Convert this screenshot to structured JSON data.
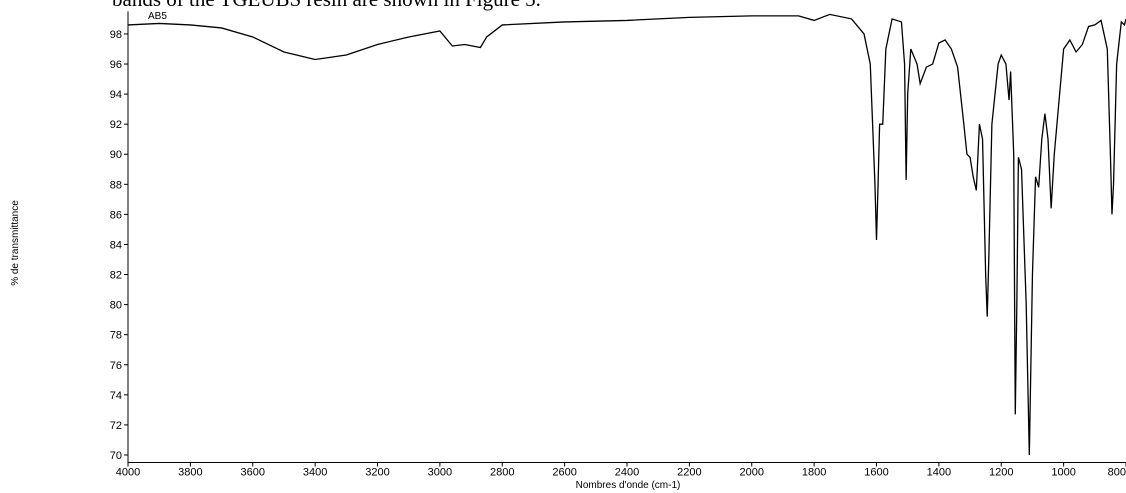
{
  "caption_fragment": "bands of the TGEUBS resin are shown in Figure 5.",
  "chart_data": {
    "type": "line",
    "annotation": "AB5",
    "x_label": "Nombres d'onde (cm-1)",
    "y_label": "% de transmittance",
    "x_reversed": true,
    "xlim": [
      4000,
      800
    ],
    "ylim": [
      69.5,
      99.5
    ],
    "xticks": [
      4000,
      3800,
      3600,
      3400,
      3200,
      3000,
      2800,
      2600,
      2400,
      2200,
      2000,
      1800,
      1600,
      1400,
      1200,
      1000,
      800
    ],
    "yticks": [
      70,
      72,
      74,
      76,
      78,
      80,
      82,
      84,
      86,
      88,
      90,
      92,
      94,
      96,
      98
    ],
    "grid": false,
    "x": [
      4000,
      3900,
      3800,
      3700,
      3600,
      3500,
      3400,
      3300,
      3200,
      3100,
      3000,
      2960,
      2920,
      2870,
      2850,
      2800,
      2600,
      2400,
      2200,
      2000,
      1850,
      1800,
      1750,
      1680,
      1640,
      1620,
      1605,
      1600,
      1595,
      1590,
      1580,
      1570,
      1550,
      1520,
      1510,
      1505,
      1500,
      1490,
      1470,
      1460,
      1440,
      1420,
      1400,
      1380,
      1360,
      1340,
      1320,
      1310,
      1300,
      1290,
      1280,
      1270,
      1260,
      1250,
      1245,
      1240,
      1230,
      1210,
      1200,
      1185,
      1175,
      1170,
      1160,
      1155,
      1150,
      1145,
      1135,
      1120,
      1110,
      1100,
      1090,
      1080,
      1070,
      1060,
      1050,
      1040,
      1030,
      1000,
      980,
      960,
      940,
      920,
      900,
      880,
      860,
      850,
      845,
      840,
      830,
      815,
      805,
      800
    ],
    "series": [
      {
        "color": "#000000",
        "values": [
          98.6,
          98.7,
          98.6,
          98.4,
          97.8,
          96.8,
          96.3,
          96.6,
          97.3,
          97.8,
          98.2,
          97.2,
          97.3,
          97.1,
          97.8,
          98.6,
          98.8,
          98.9,
          99.1,
          99.2,
          99.2,
          98.9,
          99.3,
          99.0,
          98.0,
          96,
          88,
          84.3,
          88,
          92,
          92,
          97,
          99.0,
          98.8,
          96,
          88.3,
          94,
          97,
          96,
          94.7,
          95.8,
          96,
          97.4,
          97.6,
          97.0,
          95.8,
          92,
          90,
          89.8,
          88.5,
          87.6,
          92,
          91,
          82,
          79.2,
          83,
          92,
          96,
          96.6,
          96,
          93.6,
          95.5,
          90,
          72.7,
          80,
          89.8,
          89,
          80,
          70,
          82,
          88.5,
          87.8,
          91,
          92.7,
          91,
          86.4,
          90,
          97,
          97.6,
          96.8,
          97.3,
          98.5,
          98.6,
          98.9,
          97,
          90,
          86,
          88,
          96,
          98.8,
          98.6,
          99.0
        ]
      }
    ]
  }
}
